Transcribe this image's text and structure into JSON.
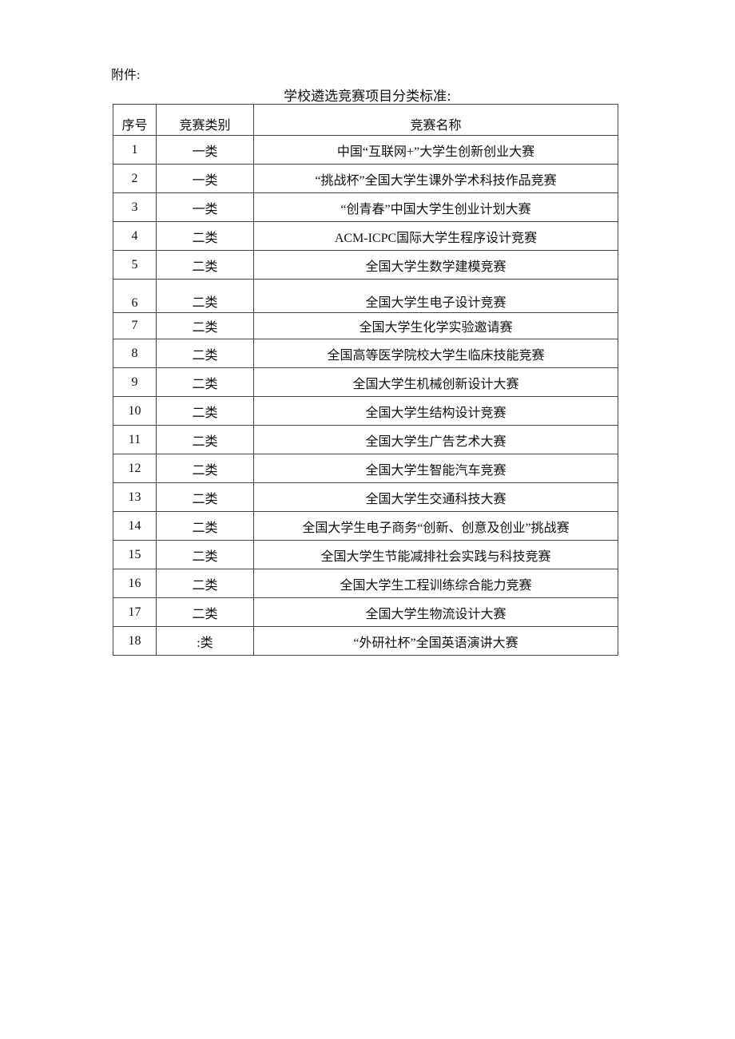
{
  "header": {
    "attachment_label": "附件:",
    "title": "学校遴选竞赛项目分类标准:"
  },
  "table": {
    "columns": [
      "序号",
      "竞赛类别",
      "竞赛名称"
    ],
    "rows": [
      [
        "1",
        "一类",
        "中国“互联网+”大学生创新创业大赛"
      ],
      [
        "2",
        "一类",
        "“挑战杯”全国大学生课外学术科技作品竞赛"
      ],
      [
        "3",
        "一类",
        "“创青春”中国大学生创业计划大赛"
      ],
      [
        "4",
        "二类",
        "ACM-ICPC国际大学生程序设计竞赛"
      ],
      [
        "5",
        "二类",
        "全国大学生数学建模竞赛"
      ],
      [
        "6",
        "二类",
        "全国大学生电子设计竞赛"
      ],
      [
        "7",
        "二类",
        "全国大学生化学实验邀请赛"
      ],
      [
        "8",
        "二类",
        "全国高等医学院校大学生临床技能竞赛"
      ],
      [
        "9",
        "二类",
        "全国大学生机械创新设计大赛"
      ],
      [
        "10",
        "二类",
        "全国大学生结构设计竞赛"
      ],
      [
        "11",
        "二类",
        "全国大学生广告艺术大赛"
      ],
      [
        "12",
        "二类",
        "全国大学生智能汽车竞赛"
      ],
      [
        "13",
        "二类",
        "全国大学生交通科技大赛"
      ],
      [
        "14",
        "二类",
        "全国大学生电子商务“创新、创意及创业”挑战赛"
      ],
      [
        "15",
        "二类",
        "全国大学生节能减排社会实践与科技竞赛"
      ],
      [
        "16",
        "二类",
        "全国大学生工程训练综合能力竞赛"
      ],
      [
        "17",
        "二类",
        "全国大学生物流设计大赛"
      ],
      [
        "18",
        ":类",
        "“外研社杯”全国英语演讲大赛"
      ]
    ]
  }
}
